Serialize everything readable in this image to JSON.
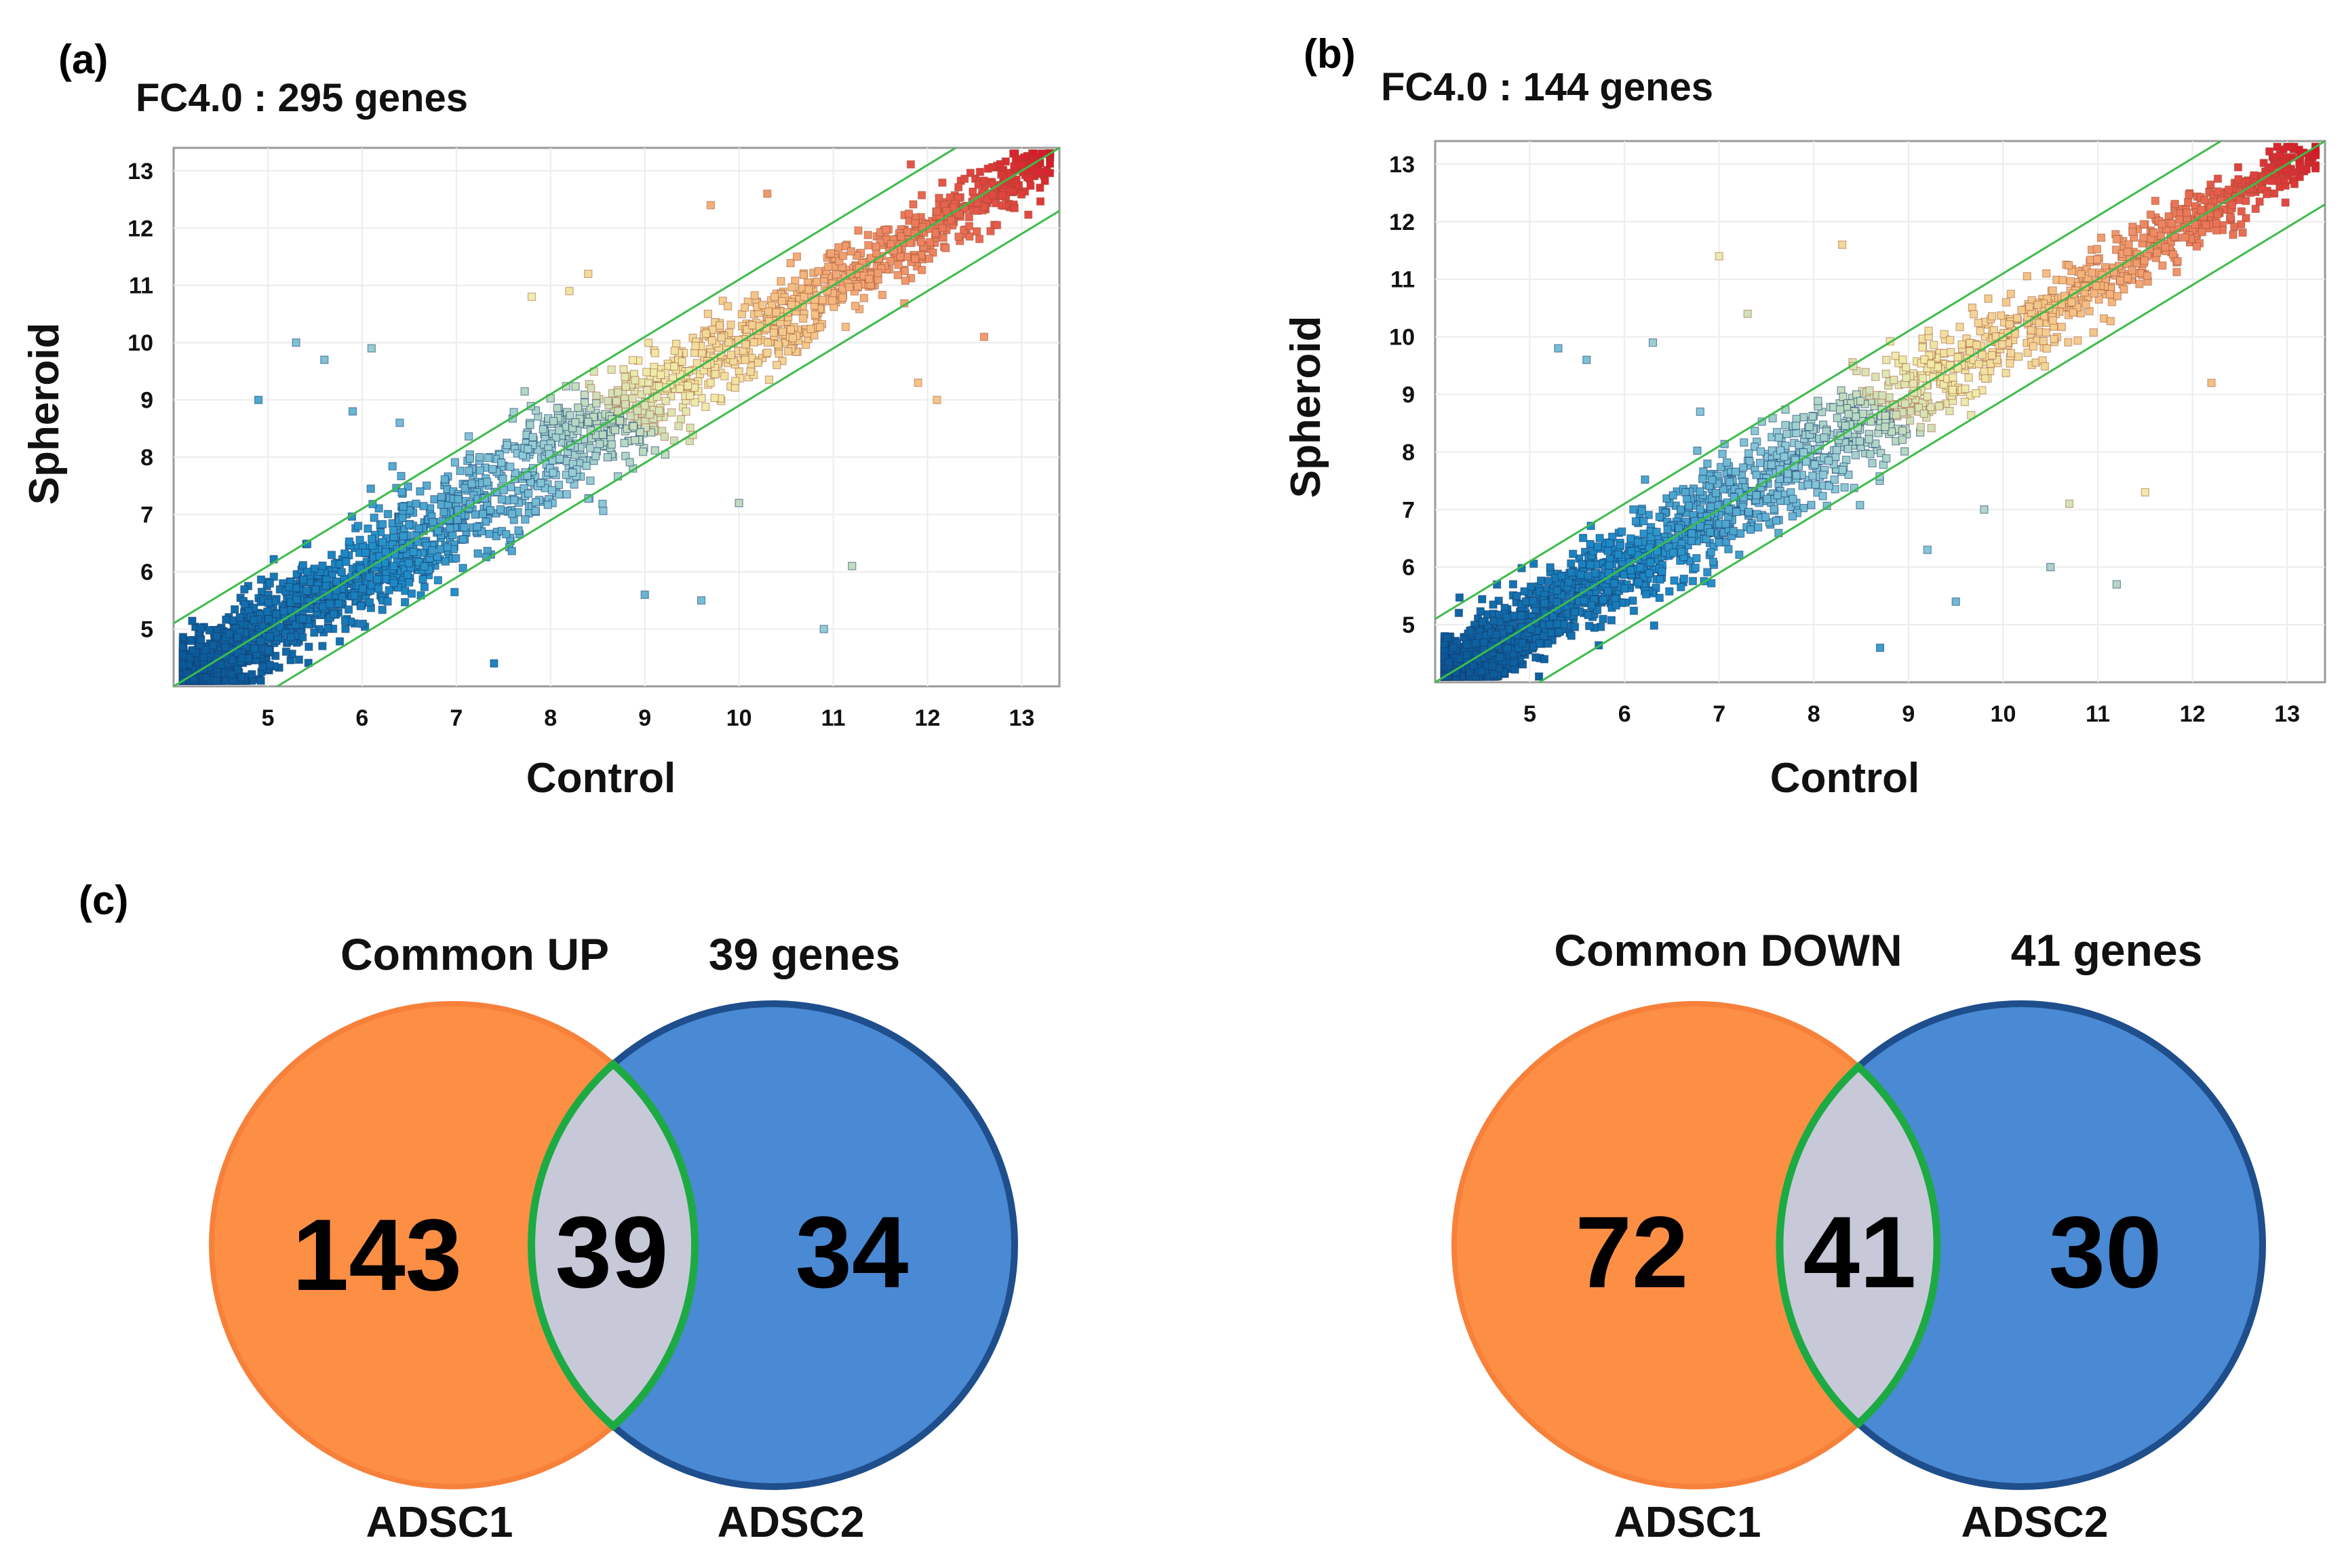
{
  "panels": {
    "a": "(a)",
    "b": "(b)",
    "c": "(c)"
  },
  "chart_data": [
    {
      "type": "scatter",
      "panel": "(a)",
      "title": "FC4.0 : 295 genes",
      "xlabel": "Control",
      "ylabel": "Spheroid",
      "xlim": [
        4,
        13.4
      ],
      "ylim": [
        4,
        13.4
      ],
      "xticks": [
        5,
        6,
        7,
        8,
        9,
        10,
        11,
        12,
        13
      ],
      "yticks": [
        5,
        6,
        7,
        8,
        9,
        10,
        11,
        12,
        13
      ],
      "grid": true,
      "reference_lines": [
        {
          "name": "equal",
          "offset": 0
        },
        {
          "name": "up 4-fold",
          "offset": 1.1
        },
        {
          "name": "down 4-fold",
          "offset": -1.1
        }
      ],
      "spread": 0.55,
      "outliers": [
        [
          5.3,
          10.0
        ],
        [
          5.6,
          9.7
        ],
        [
          4.9,
          9.0
        ],
        [
          6.1,
          9.9
        ],
        [
          7.8,
          10.8
        ],
        [
          8.2,
          10.9
        ],
        [
          8.4,
          11.2
        ],
        [
          9.7,
          12.4
        ],
        [
          10.3,
          12.6
        ],
        [
          7.4,
          4.4
        ],
        [
          9.0,
          5.6
        ],
        [
          9.6,
          5.5
        ],
        [
          10.9,
          5.0
        ],
        [
          11.2,
          6.1
        ],
        [
          12.1,
          9.0
        ],
        [
          12.6,
          10.1
        ],
        [
          11.9,
          9.3
        ],
        [
          10.0,
          7.2
        ],
        [
          6.4,
          8.6
        ],
        [
          5.9,
          8.8
        ]
      ]
    },
    {
      "type": "scatter",
      "panel": "(b)",
      "title": "FC4.0 : 144 genes",
      "xlabel": "Control",
      "ylabel": "Spheroid",
      "xlim": [
        4,
        13.4
      ],
      "ylim": [
        4,
        13.4
      ],
      "xticks": [
        5,
        6,
        7,
        8,
        9,
        10,
        11,
        12,
        13
      ],
      "yticks": [
        5,
        6,
        7,
        8,
        9,
        10,
        11,
        12,
        13
      ],
      "grid": true,
      "reference_lines": [
        {
          "name": "equal",
          "offset": 0
        },
        {
          "name": "up 4-fold",
          "offset": 1.1
        },
        {
          "name": "down 4-fold",
          "offset": -1.1
        }
      ],
      "spread": 0.5,
      "outliers": [
        [
          5.3,
          9.8
        ],
        [
          5.6,
          9.6
        ],
        [
          6.3,
          9.9
        ],
        [
          7.0,
          11.4
        ],
        [
          8.3,
          11.6
        ],
        [
          7.3,
          10.4
        ],
        [
          12.2,
          9.2
        ],
        [
          11.2,
          5.7
        ],
        [
          10.5,
          6.0
        ],
        [
          9.5,
          5.4
        ],
        [
          11.5,
          7.3
        ],
        [
          9.8,
          7.0
        ],
        [
          8.7,
          4.6
        ],
        [
          10.7,
          7.1
        ],
        [
          6.8,
          8.7
        ],
        [
          9.2,
          6.3
        ]
      ]
    },
    {
      "type": "venn",
      "title": "Common UP",
      "subtitle": "39 genes",
      "sets": [
        {
          "name": "ADSC1",
          "only": 143,
          "color": "#FD8F45",
          "edge": "#F26A1F"
        },
        {
          "name": "ADSC2",
          "only": 34,
          "color": "#4A89D4",
          "edge": "#1F4E8C"
        }
      ],
      "intersection": 39,
      "intersection_color": "#C7C9D8",
      "intersection_edge": "#1DAA43"
    },
    {
      "type": "venn",
      "title": "Common DOWN",
      "subtitle": "41 genes",
      "sets": [
        {
          "name": "ADSC1",
          "only": 72,
          "color": "#FD8F45",
          "edge": "#F26A1F"
        },
        {
          "name": "ADSC2",
          "only": 30,
          "color": "#4A89D4",
          "edge": "#1F4E8C"
        }
      ],
      "intersection": 41,
      "intersection_color": "#C7C9D8",
      "intersection_edge": "#1DAA43"
    }
  ]
}
